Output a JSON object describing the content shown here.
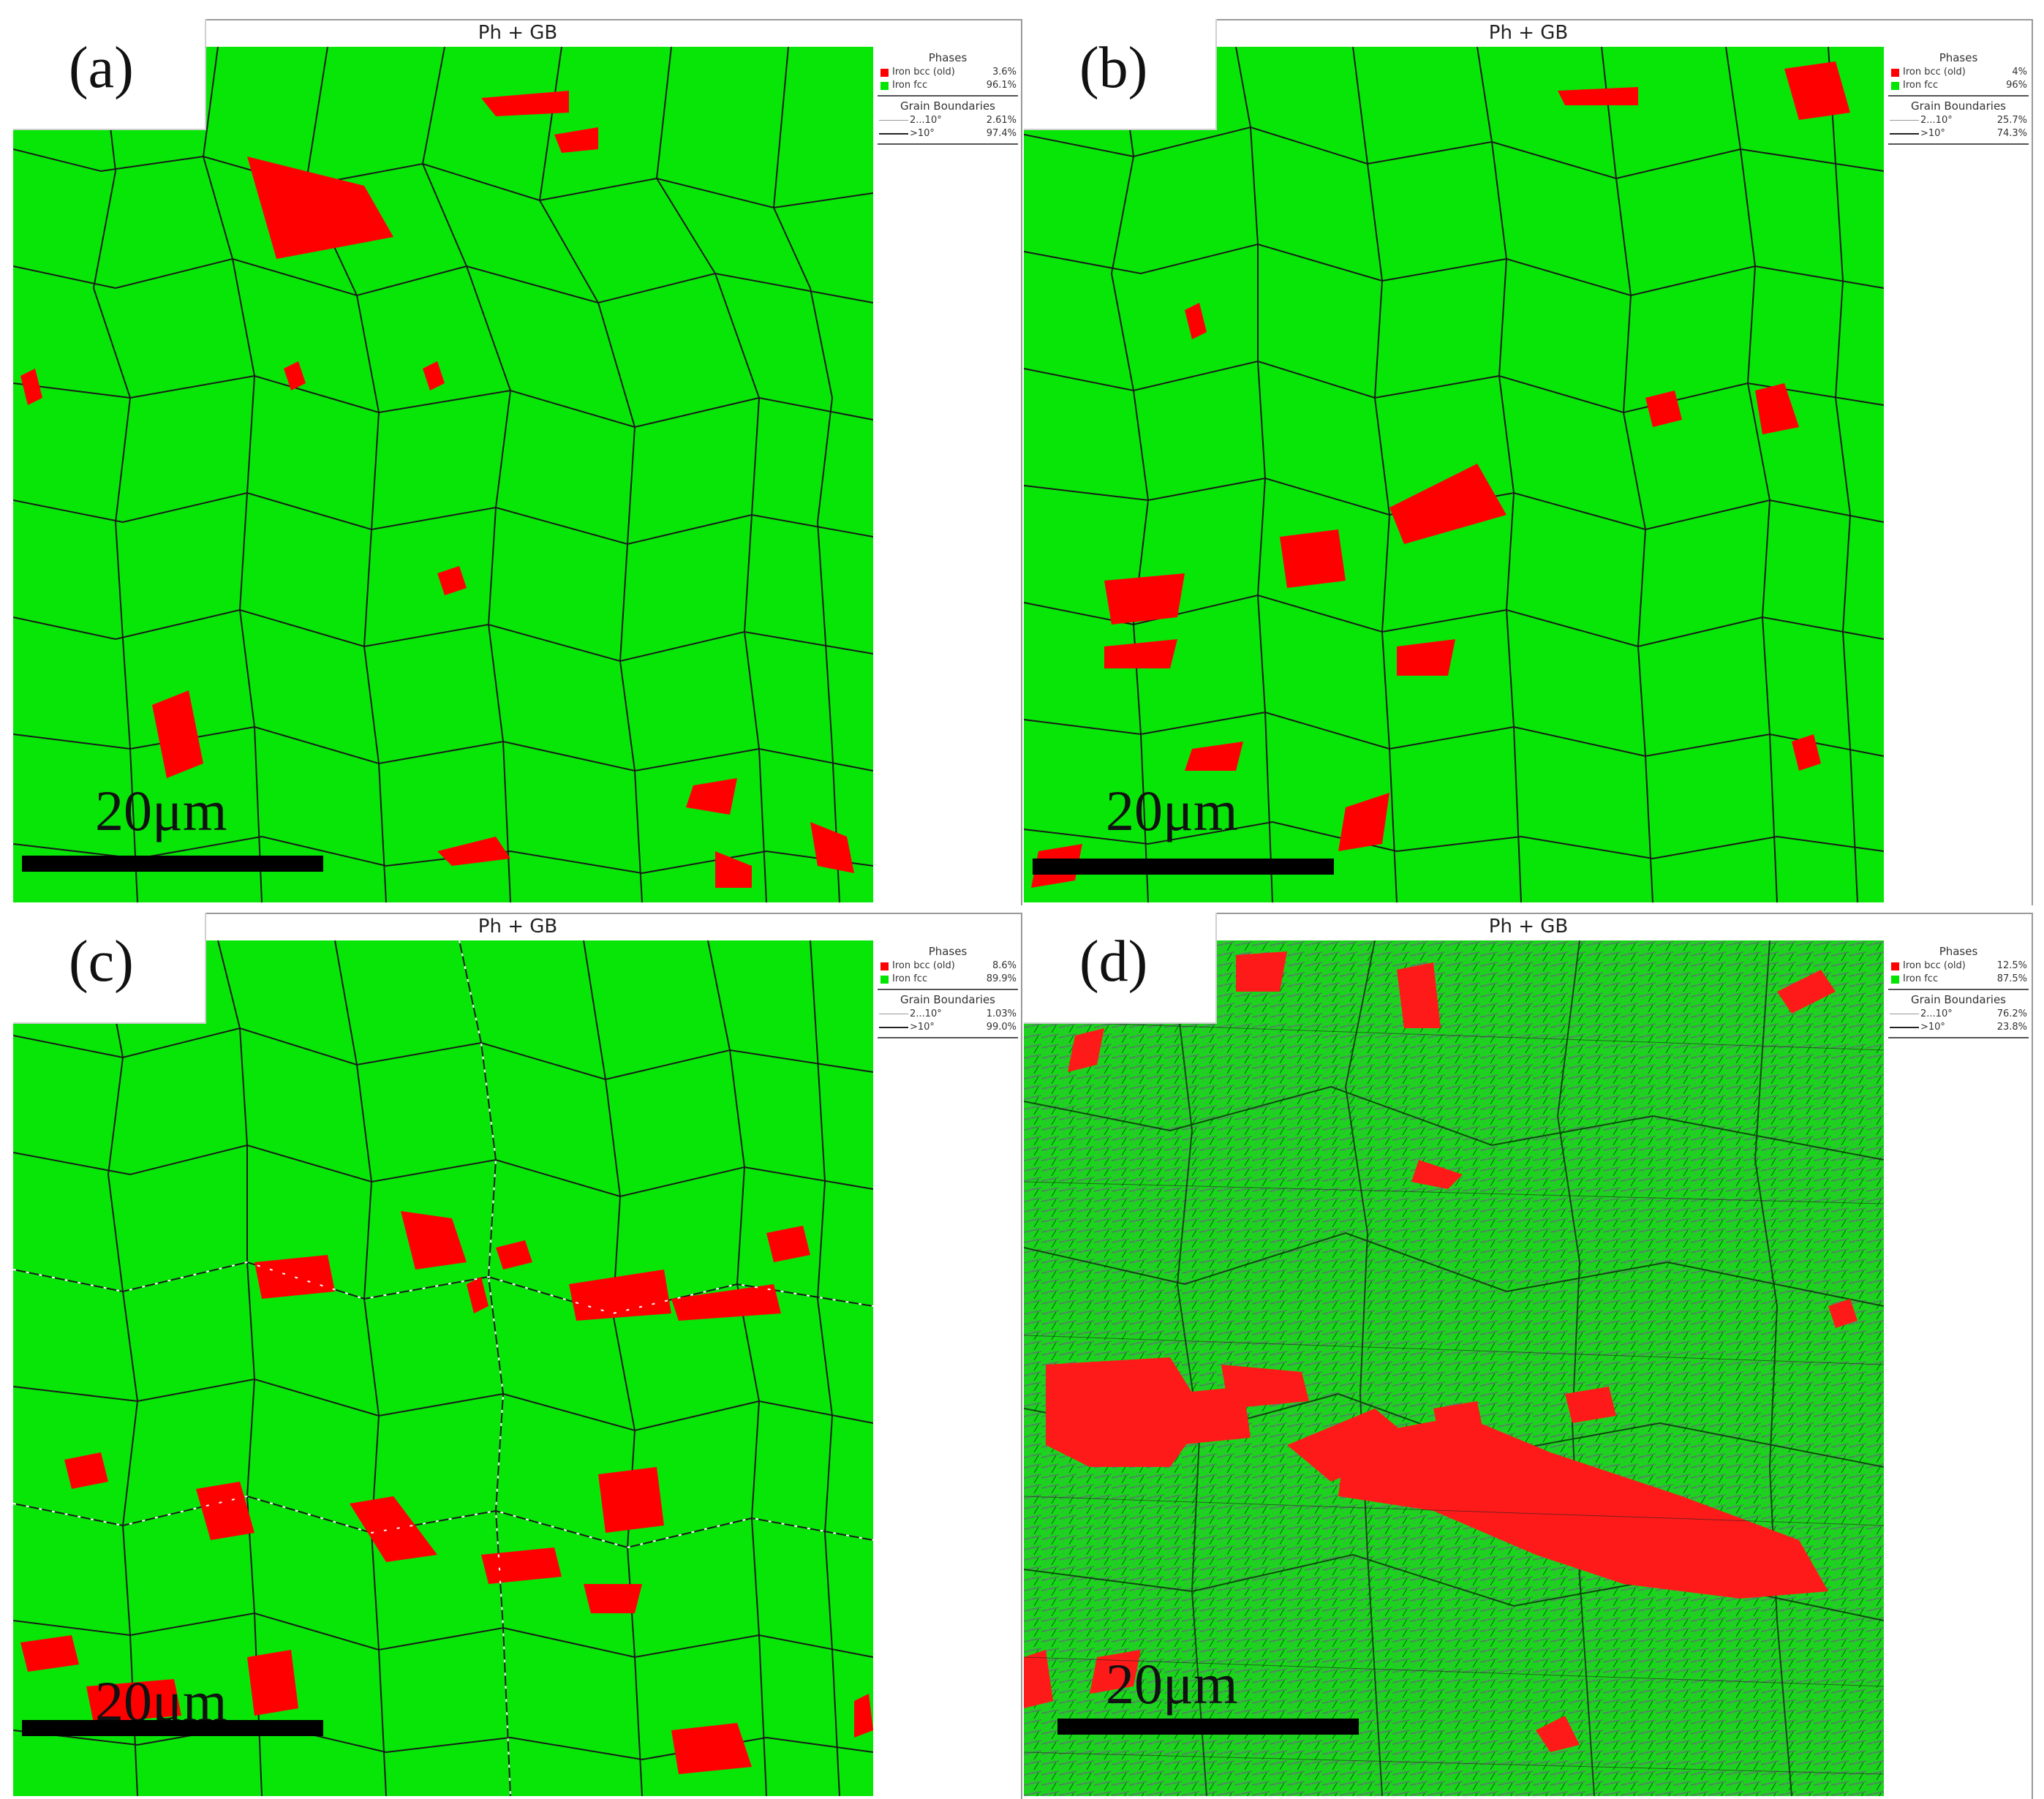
{
  "panels": [
    {
      "label": "(a)",
      "title": "Ph + GB",
      "phases_header": "Phases",
      "phases": [
        {
          "name": "Iron bcc (old)",
          "percent": "3.6%",
          "color": "#ff0000"
        },
        {
          "name": "Iron fcc",
          "percent": "96.1%",
          "color": "#00e600"
        }
      ],
      "gb_header": "Grain Boundaries",
      "grain_boundaries": [
        {
          "name": "2...10°",
          "percent": "2.61%",
          "style": "thin-grey"
        },
        {
          "name": ">10°",
          "percent": "97.4%",
          "style": "thick-black"
        }
      ],
      "scale": "20μm"
    },
    {
      "label": "(b)",
      "title": "Ph + GB",
      "phases_header": "Phases",
      "phases": [
        {
          "name": "Iron bcc (old)",
          "percent": "4%",
          "color": "#ff0000"
        },
        {
          "name": "Iron fcc",
          "percent": "96%",
          "color": "#00e600"
        }
      ],
      "gb_header": "Grain Boundaries",
      "grain_boundaries": [
        {
          "name": "2...10°",
          "percent": "25.7%",
          "style": "thin-grey"
        },
        {
          "name": ">10°",
          "percent": "74.3%",
          "style": "thick-black"
        }
      ],
      "scale": "20μm"
    },
    {
      "label": "(c)",
      "title": "Ph + GB",
      "phases_header": "Phases",
      "phases": [
        {
          "name": "Iron bcc (old)",
          "percent": "8.6%",
          "color": "#ff0000"
        },
        {
          "name": "Iron fcc",
          "percent": "89.9%",
          "color": "#00e600"
        }
      ],
      "gb_header": "Grain Boundaries",
      "grain_boundaries": [
        {
          "name": "2...10°",
          "percent": "1.03%",
          "style": "thin-grey"
        },
        {
          "name": ">10°",
          "percent": "99.0%",
          "style": "thick-black"
        }
      ],
      "scale": "20μm"
    },
    {
      "label": "(d)",
      "title": "Ph + GB",
      "phases_header": "Phases",
      "phases": [
        {
          "name": "Iron bcc (old)",
          "percent": "12.5%",
          "color": "#ff0000"
        },
        {
          "name": "Iron fcc",
          "percent": "87.5%",
          "color": "#00e600"
        }
      ],
      "gb_header": "Grain Boundaries",
      "grain_boundaries": [
        {
          "name": "2...10°",
          "percent": "76.2%",
          "style": "thin-grey"
        },
        {
          "name": ">10°",
          "percent": "23.8%",
          "style": "thick-black"
        }
      ],
      "scale": "20μm"
    }
  ]
}
